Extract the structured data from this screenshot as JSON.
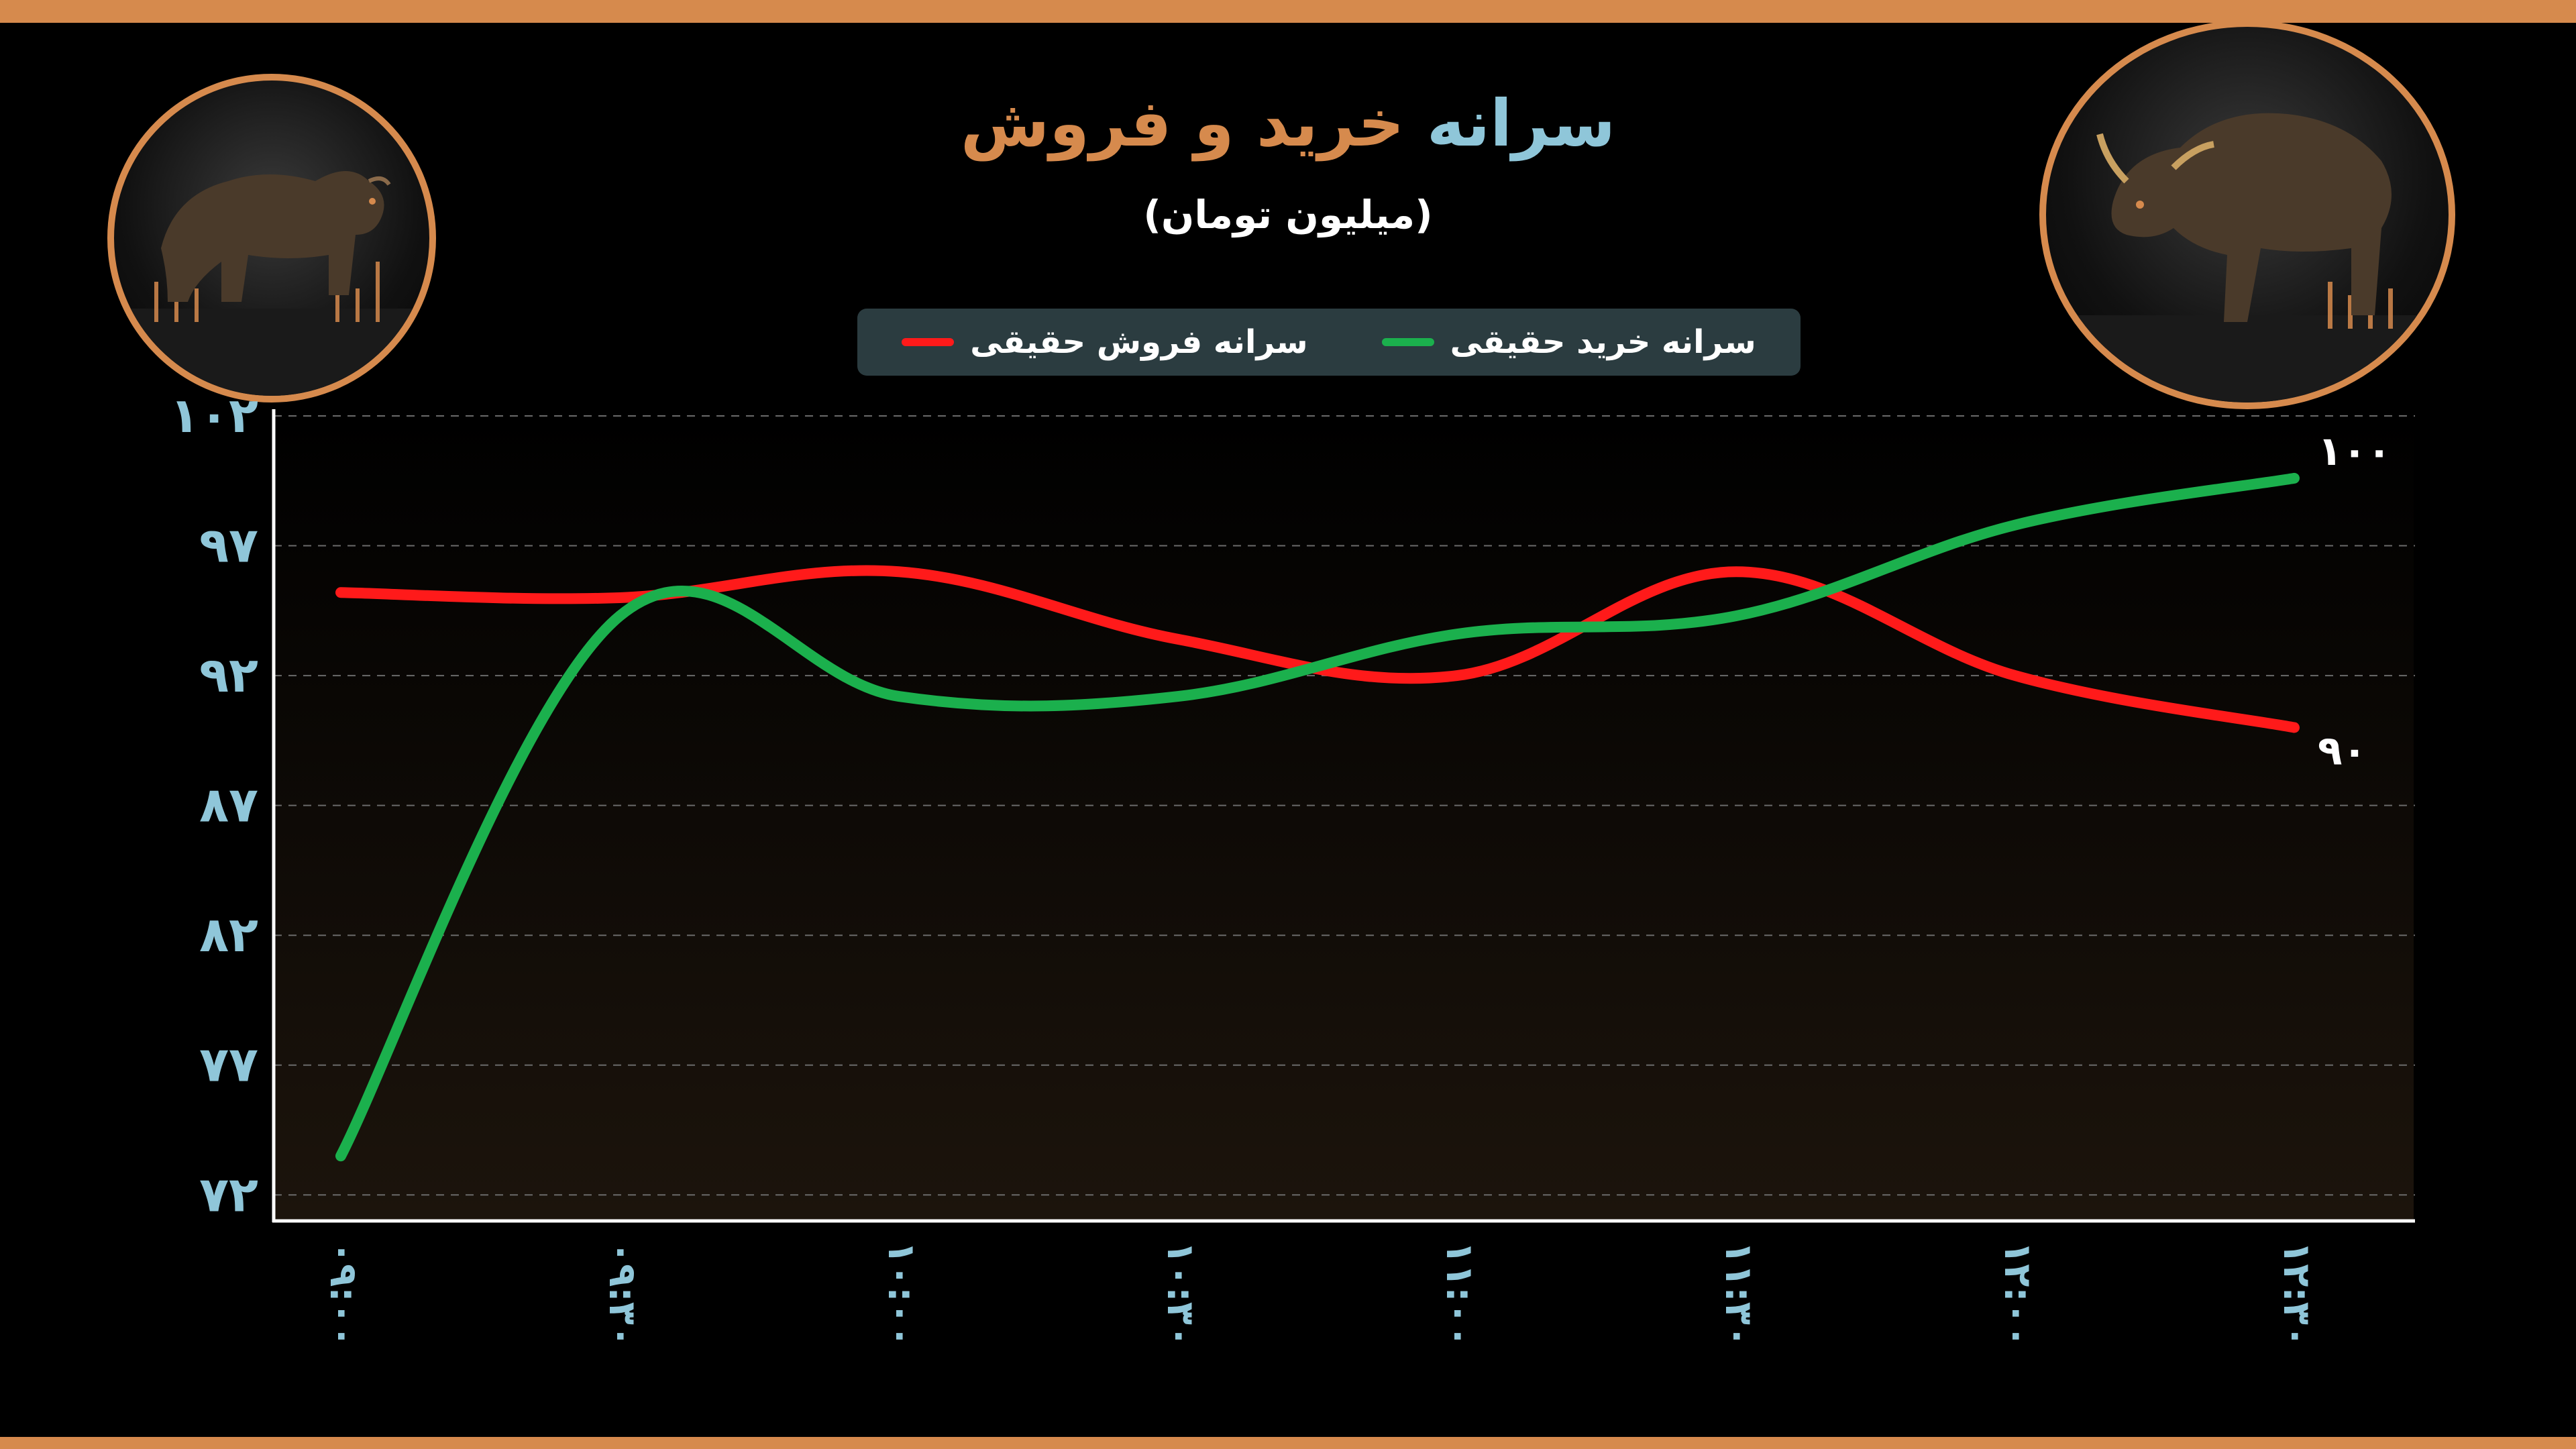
{
  "title": {
    "part1": "سرانه",
    "part2": "خرید و فروش"
  },
  "subtitle": "(میلیون تومان)",
  "legend": {
    "sell_label": "سرانه فروش حقیقی",
    "buy_label": "سرانه خرید حقیقی"
  },
  "images": {
    "left": "bear-icon",
    "right": "bull-icon"
  },
  "colors": {
    "accent": "#d68a4d",
    "title_blue": "#8fc6d9",
    "axis_label": "#8fc6d9",
    "buy_line": "#1bb04d",
    "sell_line": "#ff1a1a",
    "legend_bg": "#2b3c40"
  },
  "chart_data": {
    "type": "line",
    "title": "سرانه خرید و فروش",
    "subtitle": "(میلیون تومان)",
    "categories": [
      "۰۹:۰۰",
      "۰۹:۳۰",
      "۱۰:۰۰",
      "۱۰:۳۰",
      "۱۱:۰۰",
      "۱۱:۳۰",
      "۱۲:۰۰",
      "۱۲:۳۰"
    ],
    "y_ticks": [
      72,
      77,
      82,
      87,
      92,
      97,
      102
    ],
    "y_tick_labels": [
      "۷۲",
      "۷۷",
      "۸۲",
      "۸۷",
      "۹۲",
      "۹۷",
      "۱۰۲"
    ],
    "ylim": [
      71,
      102
    ],
    "grid": true,
    "legend_position": "top-center",
    "series": [
      {
        "name": "سرانه فروش حقیقی",
        "color": "#ff1a1a",
        "values": [
          95.2,
          95.0,
          96.0,
          93.4,
          92.0,
          96.0,
          92.0,
          90.0
        ],
        "end_label": "۹۰"
      },
      {
        "name": "سرانه خرید حقیقی",
        "color": "#1bb04d",
        "values": [
          73.5,
          94.3,
          91.2,
          91.2,
          93.6,
          94.3,
          97.8,
          99.6
        ],
        "end_label": "۱۰۰"
      }
    ]
  }
}
